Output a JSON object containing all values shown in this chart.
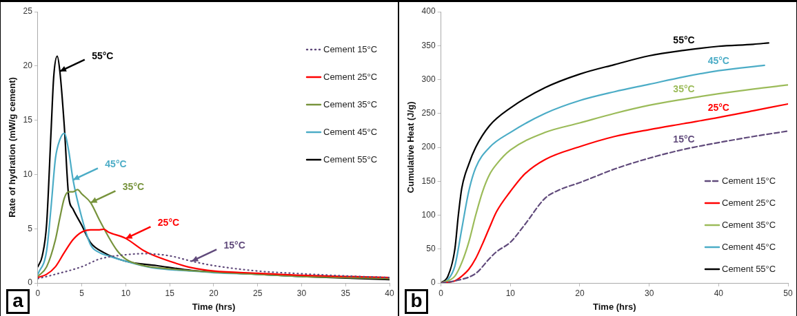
{
  "chart_data": [
    {
      "type": "line",
      "xlabel": "Time (hrs)",
      "ylabel": "Rate of hydration (mW/g cement)",
      "xlim": [
        0,
        40
      ],
      "xticks": [
        0,
        5,
        10,
        15,
        20,
        25,
        30,
        35,
        40
      ],
      "ylim": [
        0,
        25
      ],
      "yticks": [
        0,
        5,
        10,
        15,
        20,
        25
      ],
      "legend": "top right",
      "marker": "none",
      "grid": false,
      "annotations": [
        "a",
        {
          "text": "15°C",
          "x": 17.5,
          "y": 2.0
        },
        {
          "text": "25°C",
          "x": 10,
          "y": 4.1
        },
        {
          "text": "35°C",
          "x": 6,
          "y": 7.4
        },
        {
          "text": "45°C",
          "x": 4,
          "y": 9.5
        },
        {
          "text": "55°C",
          "x": 2.5,
          "y": 19.5
        }
      ],
      "series": [
        {
          "name": "Cement 15°C",
          "color": "#604a7b",
          "line_style": "dotted",
          "x": [
            0,
            2,
            5,
            7,
            10,
            12,
            15,
            17.5,
            20,
            25,
            30,
            35,
            40
          ],
          "values": [
            0.4,
            0.8,
            1.5,
            2.2,
            2.6,
            2.7,
            2.5,
            2.0,
            1.6,
            1.1,
            0.85,
            0.65,
            0.5
          ]
        },
        {
          "name": "Cement 25°C",
          "color": "#ff0000",
          "line_style": "solid",
          "x": [
            0,
            1,
            2,
            3,
            4,
            5,
            6,
            7,
            7.5,
            8,
            10,
            12,
            13,
            15,
            17.5,
            20,
            25,
            30,
            35,
            40
          ],
          "values": [
            0.5,
            0.8,
            1.5,
            2.8,
            4.0,
            4.7,
            4.9,
            4.9,
            4.95,
            4.7,
            4.1,
            3.0,
            2.6,
            2.0,
            1.4,
            1.1,
            0.9,
            0.7,
            0.6,
            0.5
          ]
        },
        {
          "name": "Cement 35°C",
          "color": "#77933c",
          "line_style": "solid",
          "x": [
            0,
            1,
            2,
            2.5,
            3,
            3.5,
            4,
            4.5,
            5,
            6,
            7,
            8,
            9,
            10,
            12,
            15,
            20,
            25,
            30,
            35,
            40
          ],
          "values": [
            0.6,
            1.5,
            4.0,
            6.0,
            7.8,
            8.4,
            8.4,
            8.6,
            8.2,
            7.4,
            5.8,
            4.3,
            3.0,
            2.2,
            1.6,
            1.3,
            1.0,
            0.8,
            0.6,
            0.5,
            0.4
          ]
        },
        {
          "name": "Cement 45°C",
          "color": "#4bacc6",
          "line_style": "solid",
          "x": [
            0,
            1,
            1.5,
            2,
            2.5,
            3,
            3.5,
            4,
            5,
            6,
            7,
            8,
            10,
            13,
            17.5,
            20,
            25,
            30
          ],
          "values": [
            0.8,
            3.0,
            7.0,
            11.5,
            13.2,
            13.8,
            12.2,
            9.5,
            6.0,
            3.5,
            2.8,
            2.5,
            2.0,
            1.4,
            1.1,
            0.95,
            0.8,
            0.6
          ]
        },
        {
          "name": "Cement 55°C",
          "color": "#000000",
          "line_style": "solid",
          "x": [
            0,
            0.5,
            1,
            1.5,
            1.8,
            2.2,
            2.5,
            3,
            3.5,
            4,
            5,
            6,
            7.5,
            10,
            13.5,
            17.5,
            20,
            25,
            30,
            35,
            40
          ],
          "values": [
            1.5,
            2.5,
            5.5,
            14,
            19,
            20.9,
            19.5,
            14.5,
            8.0,
            6.8,
            5.3,
            3.7,
            2.8,
            2.0,
            1.6,
            1.15,
            1.0,
            0.8,
            0.6,
            0.45,
            0.3
          ]
        }
      ]
    },
    {
      "type": "line",
      "xlabel": "Time (hrs)",
      "ylabel": "Cumulative Heat (J/g)",
      "xlim": [
        0,
        50
      ],
      "xticks": [
        0,
        10,
        20,
        30,
        40,
        50
      ],
      "ylim": [
        0,
        400
      ],
      "yticks": [
        0,
        50,
        100,
        150,
        200,
        250,
        300,
        350,
        400
      ],
      "legend": "bottom right",
      "marker": "none",
      "grid": false,
      "annotations": [
        "b",
        {
          "text": "15°C",
          "x": 35,
          "y": 197
        },
        {
          "text": "25°C",
          "x": 40,
          "y": 244
        },
        {
          "text": "35°C",
          "x": 35,
          "y": 271
        },
        {
          "text": "45°C",
          "x": 40,
          "y": 313
        },
        {
          "text": "55°C",
          "x": 35,
          "y": 343
        }
      ],
      "series": [
        {
          "name": "Cement 15°C",
          "color": "#604a7b",
          "line_style": "dashed",
          "x": [
            0,
            2,
            5,
            7,
            8,
            10,
            12,
            15,
            17,
            20,
            22,
            25,
            30,
            35,
            40,
            45,
            50
          ],
          "values": [
            0,
            3,
            14,
            36,
            46,
            60,
            85,
            125,
            137,
            148,
            156,
            168,
            184,
            197,
            207,
            216,
            224
          ]
        },
        {
          "name": "Cement 25°C",
          "color": "#ff0000",
          "line_style": "solid",
          "x": [
            0,
            2,
            3,
            4,
            5,
            6,
            7,
            8,
            10,
            12,
            15,
            20,
            25,
            30,
            35,
            40,
            45,
            50
          ],
          "values": [
            0,
            3,
            10,
            20,
            36,
            58,
            82,
            105,
            135,
            160,
            182,
            201,
            216,
            226,
            235,
            244,
            254,
            264
          ]
        },
        {
          "name": "Cement 35°C",
          "color": "#9bbb59",
          "line_style": "solid",
          "x": [
            0,
            2,
            3,
            4,
            5,
            6,
            7,
            8,
            10,
            15,
            20,
            25,
            30,
            35,
            40,
            45,
            50
          ],
          "values": [
            0,
            10,
            30,
            60,
            100,
            135,
            160,
            175,
            196,
            222,
            236,
            250,
            262,
            271,
            279,
            286,
            292
          ]
        },
        {
          "name": "Cement 45°C",
          "color": "#4bacc6",
          "line_style": "solid",
          "x": [
            0,
            1,
            2,
            3,
            4,
            5,
            7,
            10,
            15,
            20,
            25,
            30,
            35,
            40,
            46.6
          ],
          "values": [
            0,
            5,
            25,
            80,
            135,
            170,
            200,
            222,
            250,
            269,
            282,
            293,
            304,
            313,
            321
          ]
        },
        {
          "name": "Cement 55°C",
          "color": "#000000",
          "line_style": "solid",
          "x": [
            0,
            1,
            2,
            2.5,
            3,
            4,
            5,
            7,
            10,
            15,
            20,
            25,
            30,
            35,
            40,
            45,
            47.2
          ],
          "values": [
            0,
            10,
            50,
            100,
            140,
            175,
            200,
            232,
            258,
            288,
            308,
            322,
            335,
            343,
            349,
            352,
            354
          ]
        }
      ]
    }
  ]
}
